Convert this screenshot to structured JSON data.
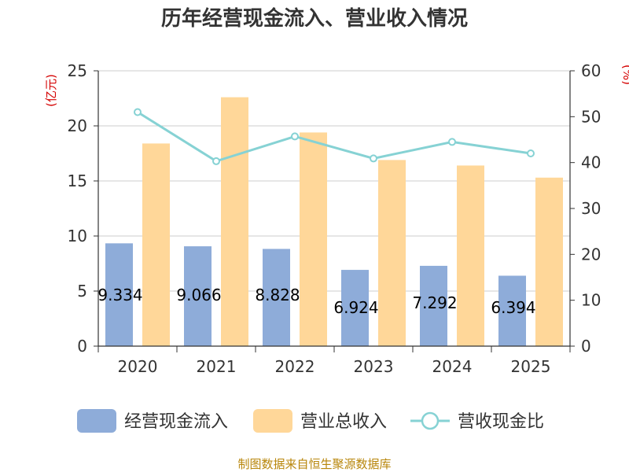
{
  "chart_data": {
    "type": "bar",
    "title": "历年经营现金流入、营业收入情况",
    "categories": [
      "2020",
      "2021",
      "2022",
      "2023",
      "2024",
      "2025"
    ],
    "series": [
      {
        "name": "经营现金流入",
        "kind": "bar",
        "axis": "left",
        "color": "#8eacd9",
        "values": [
          9.334,
          9.066,
          8.828,
          6.924,
          7.292,
          6.394
        ],
        "labels": [
          "9.334",
          "9.066",
          "8.828",
          "6.924",
          "7.292",
          "6.394"
        ]
      },
      {
        "name": "营业总收入",
        "kind": "bar",
        "axis": "left",
        "color": "#ffd799",
        "values": [
          18.4,
          22.6,
          19.4,
          16.9,
          16.4,
          15.3
        ]
      },
      {
        "name": "营收现金比",
        "kind": "line",
        "axis": "right",
        "color": "#86d2d4",
        "values": [
          51.0,
          40.3,
          45.7,
          40.9,
          44.5,
          42.0
        ]
      }
    ],
    "left_axis": {
      "unit": "(亿元)",
      "ylim": [
        0,
        25
      ],
      "ticks": [
        "0",
        "5",
        "10",
        "15",
        "20",
        "25"
      ]
    },
    "right_axis": {
      "unit": "(%)",
      "ylim": [
        0,
        60
      ],
      "ticks": [
        "0",
        "10",
        "20",
        "30",
        "40",
        "50",
        "60"
      ]
    },
    "grid": true,
    "legend_position": "bottom"
  },
  "footer": {
    "source": "制图数据来自恒生聚源数据库"
  }
}
